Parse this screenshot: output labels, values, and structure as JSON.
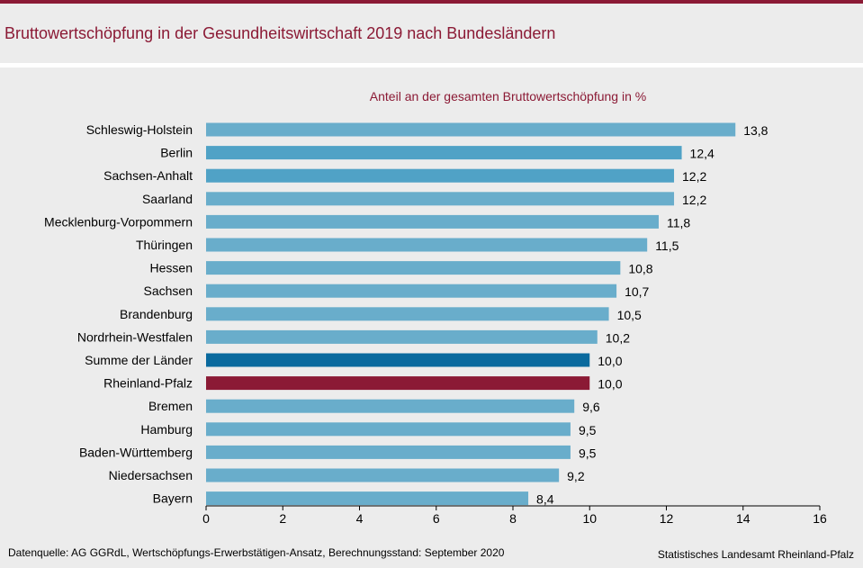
{
  "header": {
    "title": "Bruttowertschöpfung in der Gesundheitswirtschaft 2019 nach Bundesländern"
  },
  "footer": {
    "source": "Datenquelle:  AG GGRdL, Wertschöpfungs-Erwerbstätigen-Ansatz,  Berechnungsstand:  September 2020",
    "publisher": "Statistisches Landesamt Rheinland-Pfalz"
  },
  "colors": {
    "default_bar": "#69adcb",
    "highlight_berlin_bar": "#50a2c6",
    "summe_bar": "#0a6a9e",
    "rlp_bar": "#8b1a35",
    "title": "#8b1a35"
  },
  "chart_data": {
    "type": "bar",
    "orientation": "horizontal",
    "title": "Anteil an der gesamten Bruttowertschöpfung  in %",
    "xlim": [
      0,
      16
    ],
    "xticks": [
      "0",
      "2",
      "4",
      "6",
      "8",
      "10",
      "12",
      "14",
      "16"
    ],
    "grid": false,
    "categories": [
      "Schleswig-Holstein",
      "Berlin",
      "Sachsen-Anhalt",
      "Saarland",
      "Mecklenburg-Vorpommern",
      "Thüringen",
      "Hessen",
      "Sachsen",
      "Brandenburg",
      "Nordrhein-Westfalen",
      "Summe der Länder",
      "Rheinland-Pfalz",
      "Bremen",
      "Hamburg",
      "Baden-Württemberg",
      "Niedersachsen",
      "Bayern"
    ],
    "values": [
      13.8,
      12.4,
      12.2,
      12.2,
      11.8,
      11.5,
      10.8,
      10.7,
      10.5,
      10.2,
      10.0,
      10.0,
      9.6,
      9.5,
      9.5,
      9.2,
      8.4
    ],
    "value_labels": [
      "13,8",
      "12,4",
      "12,2",
      "12,2",
      "11,8",
      "11,5",
      "10,8",
      "10,7",
      "10,5",
      "10,2",
      "10,0",
      "10,0",
      "9,6",
      "9,5",
      "9,5",
      "9,2",
      "8,4"
    ],
    "bar_color_keys": [
      "default_bar",
      "highlight_berlin_bar",
      "highlight_berlin_bar",
      "default_bar",
      "default_bar",
      "default_bar",
      "default_bar",
      "default_bar",
      "default_bar",
      "default_bar",
      "summe_bar",
      "rlp_bar",
      "default_bar",
      "default_bar",
      "default_bar",
      "default_bar",
      "default_bar"
    ]
  }
}
